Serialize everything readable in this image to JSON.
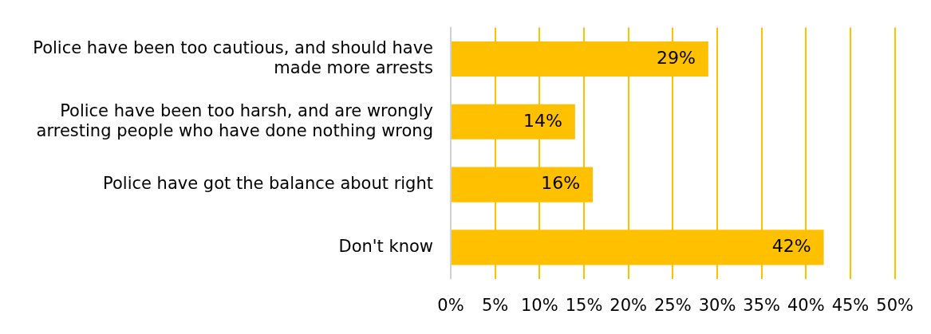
{
  "chart_data": {
    "type": "bar",
    "orientation": "horizontal",
    "categories": [
      "Police have been too cautious, and should have made more arrests",
      "Police have been too harsh, and are wrongly arresting people who have done nothing wrong",
      "Police have got the balance about right",
      "Don't know"
    ],
    "values": [
      29,
      14,
      16,
      42
    ],
    "value_labels": [
      "29%",
      "14%",
      "16%",
      "42%"
    ],
    "color": "#ffc000",
    "xlim": [
      0,
      50
    ],
    "xticks": [
      {
        "value": 0,
        "label": "0%"
      },
      {
        "value": 5,
        "label": "5%"
      },
      {
        "value": 10,
        "label": "10%"
      },
      {
        "value": 15,
        "label": "15%"
      },
      {
        "value": 20,
        "label": "20%"
      },
      {
        "value": 25,
        "label": "25%"
      },
      {
        "value": 30,
        "label": "30%"
      },
      {
        "value": 35,
        "label": "35%"
      },
      {
        "value": 40,
        "label": "40%"
      },
      {
        "value": 45,
        "label": "45%"
      },
      {
        "value": 50,
        "label": "50%"
      }
    ],
    "grid": "x",
    "legend": false
  }
}
